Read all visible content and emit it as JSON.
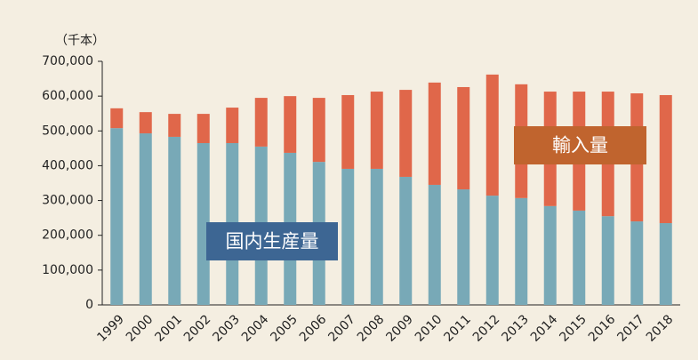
{
  "chart_data": {
    "type": "stacked_bar",
    "unit_label": "（千本）",
    "categories": [
      "1999",
      "2000",
      "2001",
      "2002",
      "2003",
      "2004",
      "2005",
      "2006",
      "2007",
      "2008",
      "2009",
      "2010",
      "2011",
      "2012",
      "2013",
      "2014",
      "2015",
      "2016",
      "2017",
      "2018"
    ],
    "series": [
      {
        "name": "国内生産量",
        "color": "#78a9b7",
        "label_color": "#3d6693",
        "values": [
          508000,
          493000,
          483000,
          465000,
          465000,
          455000,
          437000,
          411000,
          391000,
          391000,
          368000,
          345000,
          332000,
          314000,
          307000,
          284000,
          271000,
          255000,
          240000,
          235000
        ]
      },
      {
        "name": "輸入量",
        "color": "#e0674a",
        "label_color": "#c0642e",
        "values": [
          57000,
          61000,
          66000,
          84000,
          102000,
          140000,
          163000,
          184000,
          212000,
          222000,
          250000,
          294000,
          294000,
          348000,
          327000,
          329000,
          342000,
          358000,
          368000,
          368000
        ]
      }
    ],
    "ylim": [
      0,
      700000
    ],
    "yticks": [
      0,
      {
        "value": 100000,
        "label": "100,000"
      },
      {
        "value": 200000,
        "label": "200,000"
      },
      {
        "value": 300000,
        "label": "300,000"
      },
      {
        "value": 400000,
        "label": "400,000"
      },
      {
        "value": 500000,
        "label": "500,000"
      },
      {
        "value": 600000,
        "label": "600,000"
      },
      {
        "value": 700000,
        "label": "700,000"
      }
    ]
  }
}
